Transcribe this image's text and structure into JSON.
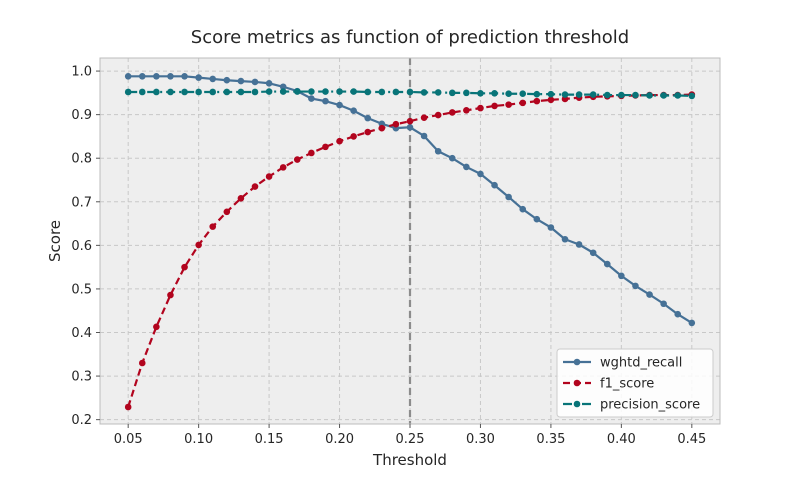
{
  "chart_data": {
    "type": "line",
    "title": "Score metrics as function of prediction threshold",
    "xlabel": "Threshold",
    "ylabel": "Score",
    "xlim": [
      0.03,
      0.47
    ],
    "ylim": [
      0.19,
      1.03
    ],
    "xticks": [
      0.05,
      0.1,
      0.15,
      0.2,
      0.25,
      0.3,
      0.35,
      0.4,
      0.45
    ],
    "xtick_labels": [
      "0.05",
      "0.10",
      "0.15",
      "0.20",
      "0.25",
      "0.30",
      "0.35",
      "0.40",
      "0.45"
    ],
    "yticks": [
      0.2,
      0.3,
      0.4,
      0.5,
      0.6,
      0.7,
      0.8,
      0.9,
      1.0
    ],
    "ytick_labels": [
      "0.2",
      "0.3",
      "0.4",
      "0.5",
      "0.6",
      "0.7",
      "0.8",
      "0.9",
      "1.0"
    ],
    "grid": true,
    "legend_position": "lower-right",
    "vline": {
      "x": 0.25,
      "color": "#8c8c8c"
    },
    "x": [
      0.05,
      0.06,
      0.07,
      0.08,
      0.09,
      0.1,
      0.11,
      0.12,
      0.13,
      0.14,
      0.15,
      0.16,
      0.17,
      0.18,
      0.19,
      0.2,
      0.21,
      0.22,
      0.23,
      0.24,
      0.25,
      0.26,
      0.27,
      0.28,
      0.29,
      0.3,
      0.31,
      0.32,
      0.33,
      0.34,
      0.35,
      0.36,
      0.37,
      0.38,
      0.39,
      0.4,
      0.41,
      0.42,
      0.43,
      0.44,
      0.45
    ],
    "series": [
      {
        "name": "wghtd_recall",
        "color": "#467196",
        "linestyle": "solid",
        "values": [
          0.988,
          0.988,
          0.988,
          0.988,
          0.988,
          0.985,
          0.982,
          0.979,
          0.977,
          0.975,
          0.972,
          0.964,
          0.954,
          0.937,
          0.931,
          0.922,
          0.909,
          0.892,
          0.879,
          0.869,
          0.871,
          0.851,
          0.816,
          0.8,
          0.78,
          0.764,
          0.738,
          0.711,
          0.683,
          0.66,
          0.641,
          0.614,
          0.602,
          0.583,
          0.557,
          0.53,
          0.507,
          0.487,
          0.466,
          0.442,
          0.422
        ]
      },
      {
        "name": "f1_score",
        "color": "#b2041e",
        "linestyle": "dashed",
        "values": [
          0.229,
          0.33,
          0.413,
          0.486,
          0.55,
          0.601,
          0.643,
          0.677,
          0.708,
          0.735,
          0.758,
          0.779,
          0.797,
          0.812,
          0.826,
          0.839,
          0.85,
          0.86,
          0.869,
          0.878,
          0.885,
          0.893,
          0.899,
          0.905,
          0.91,
          0.915,
          0.92,
          0.923,
          0.927,
          0.931,
          0.934,
          0.936,
          0.939,
          0.941,
          0.942,
          0.943,
          0.944,
          0.945,
          0.945,
          0.945,
          0.946
        ]
      },
      {
        "name": "precision_score",
        "color": "#087478",
        "linestyle": "dashdot",
        "values": [
          0.952,
          0.952,
          0.952,
          0.952,
          0.952,
          0.952,
          0.952,
          0.952,
          0.952,
          0.952,
          0.953,
          0.953,
          0.953,
          0.953,
          0.953,
          0.953,
          0.953,
          0.952,
          0.952,
          0.952,
          0.952,
          0.951,
          0.951,
          0.95,
          0.95,
          0.949,
          0.949,
          0.948,
          0.948,
          0.947,
          0.947,
          0.946,
          0.946,
          0.946,
          0.945,
          0.945,
          0.945,
          0.944,
          0.944,
          0.944,
          0.943
        ]
      }
    ],
    "colors": {
      "plot_background": "#eeeeee",
      "grid": "#c8c8c8",
      "axes_edge": "#bcbcbc"
    }
  }
}
